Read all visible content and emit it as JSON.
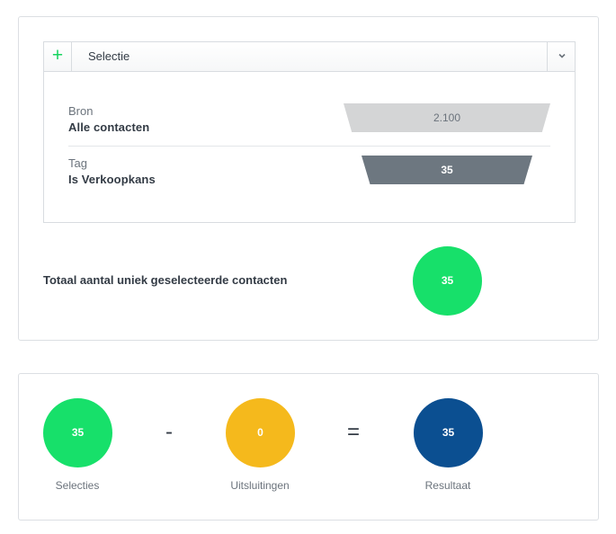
{
  "selection_panel": {
    "add_icon": "plus-icon",
    "title": "Selectie",
    "toggle_icon": "chevron-down-icon",
    "rows": [
      {
        "label": "Bron",
        "value": "Alle contacten",
        "count": "2.100",
        "color": "#d4d5d6"
      },
      {
        "label": "Tag",
        "value": "Is Verkoopkans",
        "count": "35",
        "color": "#6d7780"
      }
    ]
  },
  "total": {
    "label": "Totaal aantal uniek geselecteerde contacten",
    "value": "35",
    "color": "#17e06a"
  },
  "summary": {
    "selecties": {
      "value": "35",
      "label": "Selecties",
      "color": "#17e06a"
    },
    "minus": "-",
    "uitsluitingen": {
      "value": "0",
      "label": "Uitsluitingen",
      "color": "#f5b91c"
    },
    "equals": "=",
    "resultaat": {
      "value": "35",
      "label": "Resultaat",
      "color": "#0b4f91"
    }
  },
  "accent_color": "#17d45f"
}
